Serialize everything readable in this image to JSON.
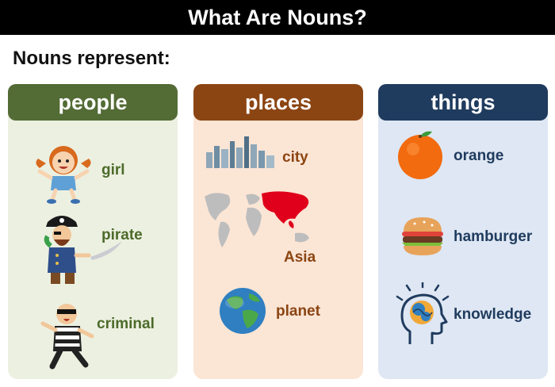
{
  "title": "What Are Nouns?",
  "subtitle": "Nouns represent:",
  "columns": [
    {
      "header": "people",
      "items": [
        "girl",
        "pirate",
        "criminal"
      ]
    },
    {
      "header": "places",
      "items": [
        "city",
        "Asia",
        "planet"
      ]
    },
    {
      "header": "things",
      "items": [
        "orange",
        "hamburger",
        "knowledge"
      ]
    }
  ],
  "colors": {
    "people_header": "#536b35",
    "places_header": "#8b4513",
    "things_header": "#1f3b5e",
    "people_bg": "#ecf0e1",
    "places_bg": "#fbe5d5",
    "things_bg": "#dee7f3"
  },
  "icons": [
    "girl-icon",
    "pirate-icon",
    "criminal-icon",
    "city-skyline-icon",
    "world-map-asia-icon",
    "planet-earth-icon",
    "orange-icon",
    "hamburger-icon",
    "head-brain-icon"
  ]
}
